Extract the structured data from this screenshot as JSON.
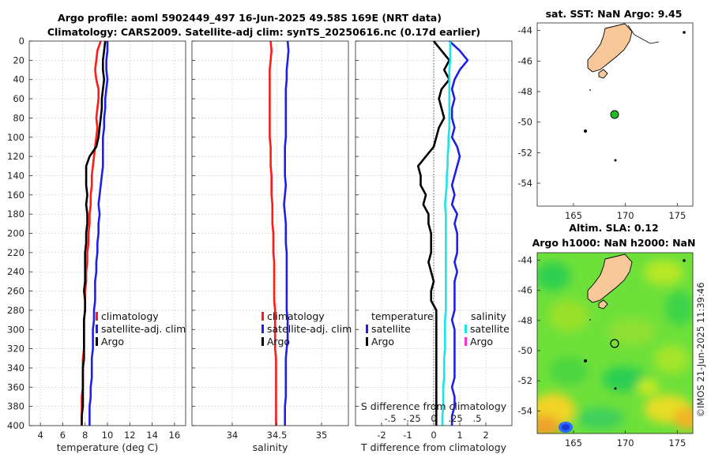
{
  "figure": {
    "title_line1": "Argo profile: aoml 5902449_497 16-Jun-2025 49.58S 169E (NRT data)",
    "title_line2": "Climatology: CARS2009. Satellite-adj clim: synTS_20250616.nc (0.17d earlier)",
    "watermark": "©IMOS 21-Jun-2025 11:39:46"
  },
  "colors": {
    "climatology": "#ff1a1a",
    "satellite": "#1f1fe6",
    "argo": "#000000",
    "sal_satellite": "#1de4e4",
    "sal_argo": "#ff33cc",
    "land": "#f9c899"
  },
  "chart_data": [
    {
      "type": "line",
      "panel": "temperature",
      "xlabel": "temperature (deg C)",
      "xlim": [
        3,
        17
      ],
      "xticks": [
        4,
        6,
        8,
        10,
        12,
        14,
        16
      ],
      "ylim": [
        0,
        400
      ],
      "yticks": [
        0,
        20,
        40,
        60,
        80,
        100,
        120,
        140,
        160,
        180,
        200,
        220,
        240,
        260,
        280,
        300,
        320,
        340,
        360,
        380,
        400
      ],
      "legend": [
        "climatology",
        "satellite-adj. clim",
        "Argo"
      ],
      "series": [
        {
          "name": "climatology",
          "color": "#ff1a1a",
          "x": [
            9.4,
            9.1,
            9.0,
            8.9,
            9.0,
            9.2,
            9.2,
            9.1,
            9.0,
            9.1,
            9.0,
            8.9,
            8.8,
            8.7,
            8.6,
            8.6,
            8.5,
            8.5,
            8.4,
            8.4,
            8.3,
            8.3,
            8.2,
            8.2,
            8.1,
            8.1,
            8.0,
            8.0,
            8.0,
            7.9,
            7.9,
            7.9,
            7.9,
            7.8,
            7.8,
            7.8,
            7.8,
            7.7,
            7.7,
            7.7,
            7.7
          ],
          "y": [
            0,
            10,
            20,
            30,
            40,
            50,
            60,
            70,
            80,
            90,
            100,
            110,
            120,
            130,
            140,
            150,
            160,
            170,
            180,
            190,
            200,
            210,
            220,
            230,
            240,
            250,
            260,
            270,
            280,
            290,
            300,
            310,
            320,
            330,
            340,
            350,
            360,
            370,
            380,
            390,
            400
          ]
        },
        {
          "name": "satellite-adj. clim",
          "color": "#1f1fe6",
          "x": [
            10.0,
            10.0,
            9.9,
            9.9,
            10.0,
            9.9,
            9.8,
            9.8,
            9.7,
            9.7,
            9.6,
            9.6,
            9.6,
            9.6,
            9.5,
            9.4,
            9.3,
            9.2,
            9.3,
            9.2,
            9.2,
            9.1,
            9.1,
            9.0,
            9.0,
            8.9,
            8.9,
            8.9,
            8.8,
            8.8,
            8.7,
            8.7,
            8.7,
            8.6,
            8.6,
            8.6,
            8.5,
            8.5,
            8.4,
            8.4,
            8.4
          ],
          "y": [
            0,
            10,
            20,
            30,
            40,
            50,
            60,
            70,
            80,
            90,
            100,
            110,
            120,
            130,
            140,
            150,
            160,
            170,
            180,
            190,
            200,
            210,
            220,
            230,
            240,
            250,
            260,
            270,
            280,
            290,
            300,
            310,
            320,
            330,
            340,
            350,
            360,
            370,
            380,
            390,
            400
          ]
        },
        {
          "name": "Argo",
          "color": "#000000",
          "x": [
            9.8,
            9.7,
            9.6,
            9.6,
            9.7,
            9.6,
            9.5,
            9.5,
            9.4,
            9.3,
            9.2,
            9.0,
            8.4,
            8.1,
            8.1,
            8.1,
            8.2,
            8.1,
            8.2,
            8.2,
            8.1,
            8.1,
            8.0,
            8.0,
            8.0,
            8.0,
            7.9,
            8.0,
            8.0,
            7.9,
            7.9,
            7.9,
            7.9,
            7.9,
            7.8,
            7.8,
            7.8,
            7.8,
            7.8,
            7.7,
            7.7
          ],
          "y": [
            0,
            10,
            20,
            30,
            40,
            50,
            60,
            70,
            80,
            90,
            100,
            110,
            120,
            130,
            140,
            150,
            160,
            170,
            180,
            190,
            200,
            210,
            220,
            230,
            240,
            250,
            260,
            270,
            280,
            290,
            300,
            310,
            320,
            330,
            340,
            350,
            360,
            370,
            380,
            390,
            400
          ]
        }
      ]
    },
    {
      "type": "line",
      "panel": "salinity",
      "xlabel": "salinity",
      "xlim": [
        33.55,
        35.3
      ],
      "xticks": [
        34,
        34.5,
        35
      ],
      "ylim": [
        0,
        400
      ],
      "legend": [
        "climatology",
        "satellite-adj. clim",
        "Argo"
      ],
      "series": [
        {
          "name": "climatology",
          "color": "#ff1a1a",
          "x": [
            34.43,
            34.44,
            34.43,
            34.42,
            34.42,
            34.42,
            34.42,
            34.42,
            34.42,
            34.42,
            34.42,
            34.43,
            34.43,
            34.43,
            34.44,
            34.44,
            34.44,
            34.45,
            34.45,
            34.45,
            34.46,
            34.46,
            34.46,
            34.47,
            34.47,
            34.47,
            34.47,
            34.47,
            34.48,
            34.48,
            34.48,
            34.48,
            34.48,
            34.49,
            34.49,
            34.49,
            34.49,
            34.49,
            34.49,
            34.49,
            34.49
          ],
          "y": [
            0,
            10,
            20,
            30,
            40,
            50,
            60,
            70,
            80,
            90,
            100,
            110,
            120,
            130,
            140,
            150,
            160,
            170,
            180,
            190,
            200,
            210,
            220,
            230,
            240,
            250,
            260,
            270,
            280,
            290,
            300,
            310,
            320,
            330,
            340,
            350,
            360,
            370,
            380,
            390,
            400
          ]
        },
        {
          "name": "satellite-adj. clim",
          "color": "#1f1fe6",
          "x": [
            34.62,
            34.63,
            34.62,
            34.61,
            34.61,
            34.6,
            34.6,
            34.6,
            34.6,
            34.6,
            34.6,
            34.59,
            34.59,
            34.59,
            34.59,
            34.6,
            34.59,
            34.58,
            34.59,
            34.6,
            34.6,
            34.6,
            34.61,
            34.61,
            34.61,
            34.61,
            34.61,
            34.61,
            34.61,
            34.62,
            34.62,
            34.62,
            34.61,
            34.6,
            34.6,
            34.6,
            34.6,
            34.6,
            34.59,
            34.59,
            34.59
          ],
          "y": [
            0,
            10,
            20,
            30,
            40,
            50,
            60,
            70,
            80,
            90,
            100,
            110,
            120,
            130,
            140,
            150,
            160,
            170,
            180,
            190,
            200,
            210,
            220,
            230,
            240,
            250,
            260,
            270,
            280,
            290,
            300,
            310,
            320,
            330,
            340,
            350,
            360,
            370,
            380,
            390,
            400
          ]
        }
      ]
    },
    {
      "type": "line",
      "panel": "difference",
      "xlabel": "T difference from climatology",
      "xlabel_top": "S difference from climatology",
      "xlim": [
        -3,
        3
      ],
      "xticks": [
        -2,
        -1,
        0,
        1,
        2
      ],
      "xlim_top": [
        -0.9,
        0.9
      ],
      "xticks_top": [
        -0.5,
        -0.25,
        0,
        0.25,
        0.5
      ],
      "ylim": [
        0,
        400
      ],
      "legend_temperature_title": "temperature",
      "legend_temperature": [
        "satellite",
        "Argo"
      ],
      "legend_salinity_title": "salinity",
      "legend_salinity": [
        "satellite",
        "Argo"
      ],
      "series": [
        {
          "name": "T satellite",
          "color": "#1f1fe6",
          "x": [
            0.6,
            1.0,
            1.3,
            1.0,
            0.8,
            0.7,
            0.8,
            0.7,
            0.7,
            0.8,
            0.7,
            0.9,
            1.0,
            0.9,
            0.8,
            0.7,
            0.8,
            0.7,
            0.9,
            0.8,
            0.9,
            0.9,
            0.9,
            0.8,
            0.9,
            0.8,
            0.8,
            0.8,
            0.8,
            0.7,
            0.8,
            0.8,
            0.8,
            0.8,
            0.8,
            0.8,
            0.7,
            0.8,
            0.8,
            0.7,
            0.7
          ],
          "y": [
            0,
            10,
            20,
            30,
            40,
            50,
            60,
            70,
            80,
            90,
            100,
            110,
            120,
            130,
            140,
            150,
            160,
            170,
            180,
            190,
            200,
            210,
            220,
            230,
            240,
            250,
            260,
            270,
            280,
            290,
            300,
            310,
            320,
            330,
            340,
            350,
            360,
            370,
            380,
            390,
            400
          ]
        },
        {
          "name": "T Argo",
          "color": "#000000",
          "x": [
            0.0,
            0.3,
            0.6,
            0.4,
            0.6,
            0.3,
            0.2,
            0.3,
            0.4,
            0.2,
            0.1,
            0.0,
            -0.3,
            -0.6,
            -0.5,
            -0.5,
            -0.3,
            -0.4,
            -0.2,
            -0.2,
            -0.1,
            -0.1,
            -0.1,
            -0.2,
            -0.1,
            0.0,
            -0.1,
            -0.1,
            0.1,
            0.1,
            0.1,
            0.1,
            0.1,
            0.1,
            0.1,
            0.1,
            0.1,
            0.1,
            0.1,
            0.1,
            0.1
          ],
          "y": [
            0,
            10,
            20,
            30,
            40,
            50,
            60,
            70,
            80,
            90,
            100,
            110,
            120,
            130,
            140,
            150,
            160,
            170,
            180,
            190,
            200,
            210,
            220,
            230,
            240,
            250,
            260,
            270,
            280,
            290,
            300,
            310,
            320,
            330,
            340,
            350,
            360,
            370,
            380,
            390,
            400
          ]
        },
        {
          "name": "S satellite",
          "color": "#1de4e4",
          "x": [
            0.19,
            0.19,
            0.19,
            0.18,
            0.18,
            0.18,
            0.18,
            0.18,
            0.18,
            0.18,
            0.17,
            0.17,
            0.16,
            0.16,
            0.15,
            0.15,
            0.14,
            0.13,
            0.14,
            0.14,
            0.14,
            0.14,
            0.14,
            0.14,
            0.14,
            0.14,
            0.14,
            0.14,
            0.14,
            0.13,
            0.13,
            0.13,
            0.13,
            0.12,
            0.12,
            0.12,
            0.11,
            0.11,
            0.11,
            0.1,
            0.1
          ],
          "y": [
            0,
            10,
            20,
            30,
            40,
            50,
            60,
            70,
            80,
            90,
            100,
            110,
            120,
            130,
            140,
            150,
            160,
            170,
            180,
            190,
            200,
            210,
            220,
            230,
            240,
            250,
            260,
            270,
            280,
            290,
            300,
            310,
            320,
            330,
            340,
            350,
            360,
            370,
            380,
            390,
            400
          ]
        }
      ]
    },
    {
      "type": "map",
      "panel": "sst",
      "title": "sat. SST: NaN Argo: 9.45",
      "xlim": [
        161.5,
        176.5
      ],
      "xticks": [
        165,
        170,
        175
      ],
      "ylim": [
        -55.5,
        -43.5
      ],
      "yticks": [
        -44,
        -46,
        -48,
        -50,
        -52,
        -54
      ],
      "profile_point": {
        "lon": 169,
        "lat": -49.58
      }
    },
    {
      "type": "map",
      "panel": "sla",
      "title_line1": "Altim. SLA: 0.12",
      "title_line2": "Argo h1000: NaN h2000: NaN",
      "xlim": [
        161.5,
        176.5
      ],
      "xticks": [
        165,
        170,
        175
      ],
      "ylim": [
        -55.5,
        -43.5
      ],
      "yticks": [
        -44,
        -46,
        -48,
        -50,
        -52,
        -54
      ],
      "profile_point": {
        "lon": 169,
        "lat": -49.58
      }
    }
  ]
}
